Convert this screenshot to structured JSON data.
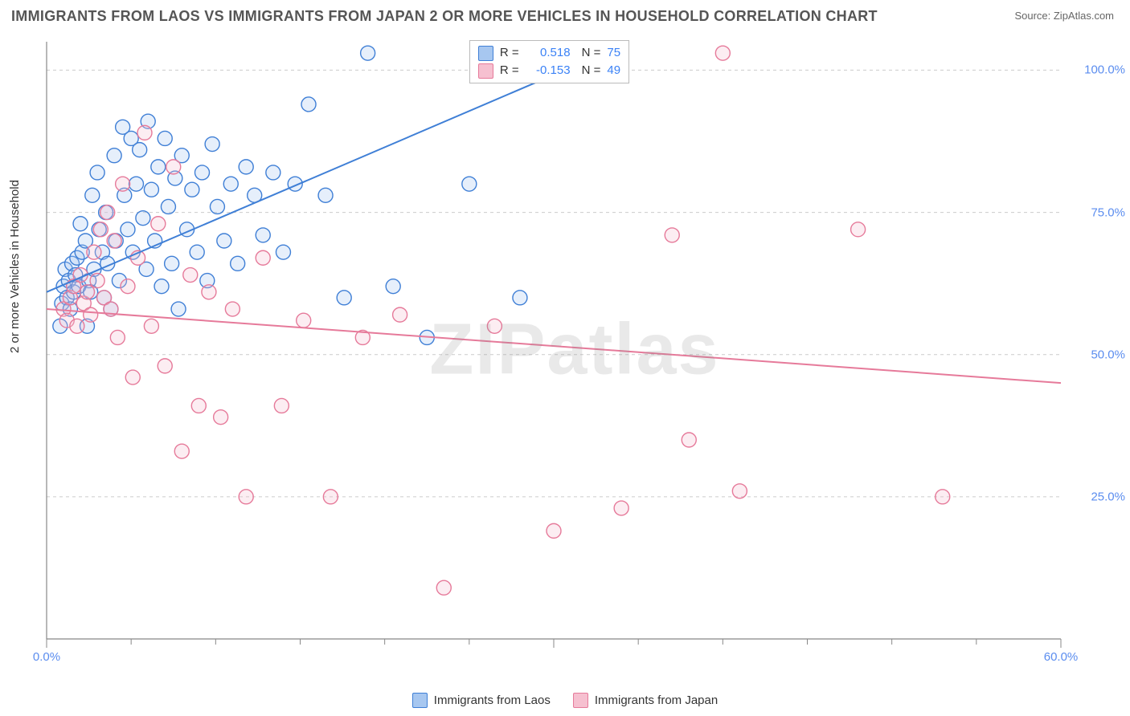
{
  "title": "IMMIGRANTS FROM LAOS VS IMMIGRANTS FROM JAPAN 2 OR MORE VEHICLES IN HOUSEHOLD CORRELATION CHART",
  "source": "Source: ZipAtlas.com",
  "watermark": "ZIPatlas",
  "y_axis_label": "2 or more Vehicles in Household",
  "chart": {
    "type": "scatter",
    "xlim": [
      0,
      60
    ],
    "ylim": [
      0,
      105
    ],
    "x_ticks": [
      0,
      60
    ],
    "x_tick_labels": [
      "0.0%",
      "60.0%"
    ],
    "x_minor_ticks": [
      5,
      10,
      15,
      20,
      25,
      30,
      35,
      40,
      45,
      50,
      55
    ],
    "y_ticks": [
      25,
      50,
      75,
      100
    ],
    "y_tick_labels": [
      "25.0%",
      "50.0%",
      "75.0%",
      "100.0%"
    ],
    "grid_color": "#cccccc",
    "grid_dash": "4,4",
    "axis_color": "#888888",
    "background_color": "#ffffff",
    "tick_label_color": "#5b8def",
    "marker_radius": 9,
    "marker_stroke_width": 1.4,
    "marker_fill_opacity": 0.28,
    "line_width": 2
  },
  "series": [
    {
      "name": "Immigrants from Laos",
      "color_stroke": "#3f7fd6",
      "color_fill": "#a7c7f0",
      "R": "0.518",
      "N": "75",
      "trend": {
        "x1": 0,
        "y1": 61,
        "x2": 33,
        "y2": 103
      },
      "points": [
        [
          0.8,
          55
        ],
        [
          0.9,
          59
        ],
        [
          1.0,
          62
        ],
        [
          1.1,
          65
        ],
        [
          1.2,
          60
        ],
        [
          1.3,
          63
        ],
        [
          1.4,
          58
        ],
        [
          1.5,
          66
        ],
        [
          1.6,
          61
        ],
        [
          1.7,
          64
        ],
        [
          1.8,
          67
        ],
        [
          1.9,
          62
        ],
        [
          2.0,
          73
        ],
        [
          2.1,
          68
        ],
        [
          2.3,
          70
        ],
        [
          2.4,
          55
        ],
        [
          2.5,
          63
        ],
        [
          2.6,
          61
        ],
        [
          2.7,
          78
        ],
        [
          2.8,
          65
        ],
        [
          3.0,
          82
        ],
        [
          3.1,
          72
        ],
        [
          3.3,
          68
        ],
        [
          3.4,
          60
        ],
        [
          3.5,
          75
        ],
        [
          3.6,
          66
        ],
        [
          3.8,
          58
        ],
        [
          4.0,
          85
        ],
        [
          4.1,
          70
        ],
        [
          4.3,
          63
        ],
        [
          4.5,
          90
        ],
        [
          4.6,
          78
        ],
        [
          4.8,
          72
        ],
        [
          5.0,
          88
        ],
        [
          5.1,
          68
        ],
        [
          5.3,
          80
        ],
        [
          5.5,
          86
        ],
        [
          5.7,
          74
        ],
        [
          5.9,
          65
        ],
        [
          6.0,
          91
        ],
        [
          6.2,
          79
        ],
        [
          6.4,
          70
        ],
        [
          6.6,
          83
        ],
        [
          6.8,
          62
        ],
        [
          7.0,
          88
        ],
        [
          7.2,
          76
        ],
        [
          7.4,
          66
        ],
        [
          7.6,
          81
        ],
        [
          7.8,
          58
        ],
        [
          8.0,
          85
        ],
        [
          8.3,
          72
        ],
        [
          8.6,
          79
        ],
        [
          8.9,
          68
        ],
        [
          9.2,
          82
        ],
        [
          9.5,
          63
        ],
        [
          9.8,
          87
        ],
        [
          10.1,
          76
        ],
        [
          10.5,
          70
        ],
        [
          10.9,
          80
        ],
        [
          11.3,
          66
        ],
        [
          11.8,
          83
        ],
        [
          12.3,
          78
        ],
        [
          12.8,
          71
        ],
        [
          13.4,
          82
        ],
        [
          14.0,
          68
        ],
        [
          14.7,
          80
        ],
        [
          15.5,
          94
        ],
        [
          16.5,
          78
        ],
        [
          17.6,
          60
        ],
        [
          19.0,
          103
        ],
        [
          20.5,
          62
        ],
        [
          22.5,
          53
        ],
        [
          25.0,
          80
        ],
        [
          28.0,
          60
        ],
        [
          33.0,
          103
        ]
      ]
    },
    {
      "name": "Immigrants from Japan",
      "color_stroke": "#e67a9a",
      "color_fill": "#f6c0d0",
      "R": "-0.153",
      "N": "49",
      "trend": {
        "x1": 0,
        "y1": 58,
        "x2": 60,
        "y2": 45
      },
      "points": [
        [
          1.0,
          58
        ],
        [
          1.2,
          56
        ],
        [
          1.4,
          60
        ],
        [
          1.6,
          62
        ],
        [
          1.8,
          55
        ],
        [
          2.0,
          64
        ],
        [
          2.2,
          59
        ],
        [
          2.4,
          61
        ],
        [
          2.6,
          57
        ],
        [
          2.8,
          68
        ],
        [
          3.0,
          63
        ],
        [
          3.2,
          72
        ],
        [
          3.4,
          60
        ],
        [
          3.6,
          75
        ],
        [
          3.8,
          58
        ],
        [
          4.0,
          70
        ],
        [
          4.2,
          53
        ],
        [
          4.5,
          80
        ],
        [
          4.8,
          62
        ],
        [
          5.1,
          46
        ],
        [
          5.4,
          67
        ],
        [
          5.8,
          89
        ],
        [
          6.2,
          55
        ],
        [
          6.6,
          73
        ],
        [
          7.0,
          48
        ],
        [
          7.5,
          83
        ],
        [
          8.0,
          33
        ],
        [
          8.5,
          64
        ],
        [
          9.0,
          41
        ],
        [
          9.6,
          61
        ],
        [
          10.3,
          39
        ],
        [
          11.0,
          58
        ],
        [
          11.8,
          25
        ],
        [
          12.8,
          67
        ],
        [
          13.9,
          41
        ],
        [
          15.2,
          56
        ],
        [
          16.8,
          25
        ],
        [
          18.7,
          53
        ],
        [
          20.9,
          57
        ],
        [
          23.5,
          9
        ],
        [
          26.5,
          55
        ],
        [
          30.0,
          19
        ],
        [
          34.0,
          23
        ],
        [
          37.0,
          71
        ],
        [
          38.0,
          35
        ],
        [
          40.0,
          103
        ],
        [
          41.0,
          26
        ],
        [
          48.0,
          72
        ],
        [
          53.0,
          25
        ]
      ]
    }
  ],
  "legend_top": {
    "rows": [
      {
        "swatch_fill": "#a7c7f0",
        "swatch_stroke": "#3f7fd6",
        "R": "0.518",
        "N": "75"
      },
      {
        "swatch_fill": "#f6c0d0",
        "swatch_stroke": "#e67a9a",
        "R": "-0.153",
        "N": "49"
      }
    ]
  },
  "bottom_legend": {
    "items": [
      {
        "swatch_fill": "#a7c7f0",
        "swatch_stroke": "#3f7fd6",
        "label": "Immigrants from Laos"
      },
      {
        "swatch_fill": "#f6c0d0",
        "swatch_stroke": "#e67a9a",
        "label": "Immigrants from Japan"
      }
    ]
  }
}
